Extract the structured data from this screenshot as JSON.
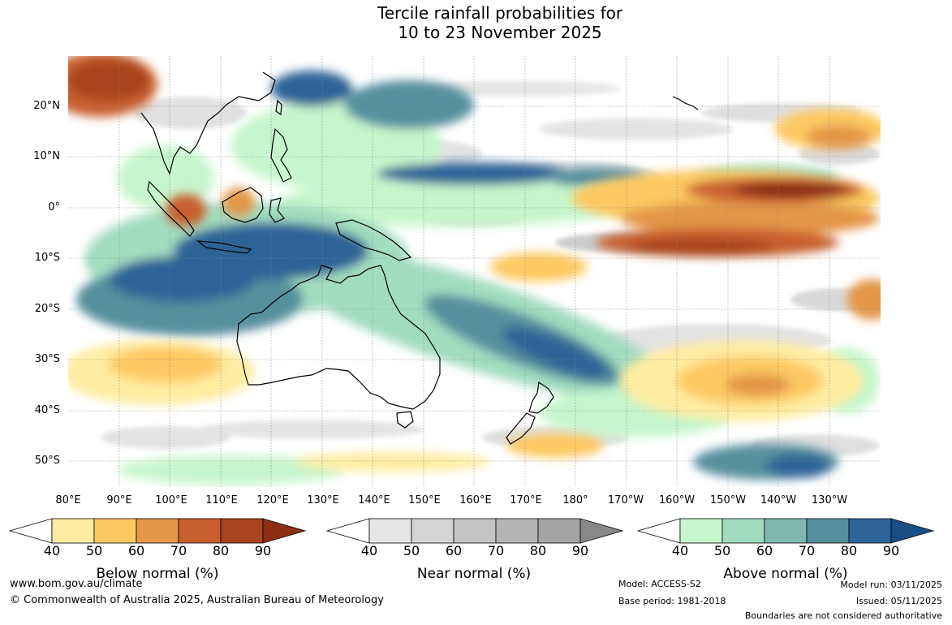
{
  "title": {
    "line1": "Tercile rainfall probabilities for",
    "line2": "10 to 23 November 2025"
  },
  "map": {
    "lat_labels": [
      "20°N",
      "10°N",
      "0°",
      "10°S",
      "20°S",
      "30°S",
      "40°S",
      "50°S"
    ],
    "lon_labels": [
      "80°E",
      "90°E",
      "100°E",
      "110°E",
      "120°E",
      "130°E",
      "140°E",
      "150°E",
      "160°E",
      "170°E",
      "180°",
      "170°W",
      "160°W",
      "150°W",
      "140°W",
      "130°W"
    ]
  },
  "colorbars": [
    {
      "title": "Below normal (%)",
      "ticks": [
        "40",
        "50",
        "60",
        "70",
        "80",
        "90"
      ],
      "colors": [
        "#ffffff",
        "#ffeca0",
        "#fdc962",
        "#e4964a",
        "#c8612f",
        "#a8441f",
        "#8b2e12"
      ]
    },
    {
      "title": "Near normal (%)",
      "ticks": [
        "40",
        "50",
        "60",
        "70",
        "80",
        "90"
      ],
      "colors": [
        "#ffffff",
        "#e6e6e6",
        "#d4d4d4",
        "#c4c4c4",
        "#b4b4b4",
        "#a4a4a4",
        "#888888"
      ]
    },
    {
      "title": "Above normal (%)",
      "ticks": [
        "40",
        "50",
        "60",
        "70",
        "80",
        "90"
      ],
      "colors": [
        "#ffffff",
        "#c6f6cc",
        "#a2dcc0",
        "#80b8ae",
        "#578f9e",
        "#2f6496",
        "#174e86"
      ]
    }
  ],
  "footer": {
    "website": "www.bom.gov.au/climate",
    "copyright": "© Commonwealth of Australia 2025, Australian Bureau of Meteorology",
    "model": "Model: ACCESS-S2",
    "base_period": "Base period: 1981-2018",
    "model_run": "Model run: 03/11/2025",
    "issued": "Issued: 05/11/2025",
    "disclaimer": "Boundaries are not considered authoritative"
  }
}
